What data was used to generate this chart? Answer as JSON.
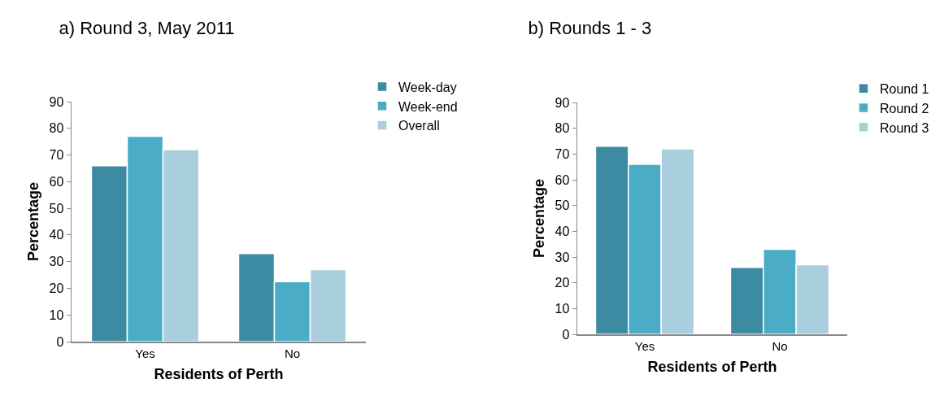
{
  "chart_data": [
    {
      "type": "bar",
      "title": "a) Round 3, May 2011",
      "xlabel": "Residents of Perth",
      "ylabel": "Percentage",
      "categories": [
        "Yes",
        "No"
      ],
      "ylim": [
        0,
        90
      ],
      "yticks": [
        0,
        10,
        20,
        30,
        40,
        50,
        60,
        70,
        80,
        90
      ],
      "grid": false,
      "legend": "top right",
      "series": [
        {
          "name": "Week-day",
          "color": "#3d8ba3",
          "values": [
            66,
            33
          ]
        },
        {
          "name": "Week-end",
          "color": "#4aacc6",
          "values": [
            77,
            22.5
          ]
        },
        {
          "name": "Overall",
          "color": "#a9cedd",
          "values": [
            72,
            27
          ]
        }
      ]
    },
    {
      "type": "bar",
      "title": "b) Rounds 1 - 3",
      "xlabel": "Residents of Perth",
      "ylabel": "Percentage",
      "categories": [
        "Yes",
        "No"
      ],
      "ylim": [
        0,
        90
      ],
      "yticks": [
        0,
        10,
        20,
        30,
        40,
        50,
        60,
        70,
        80,
        90
      ],
      "grid": false,
      "legend": "top right",
      "series": [
        {
          "name": "Round 1",
          "color": "#3d8ba3",
          "values": [
            73,
            26
          ]
        },
        {
          "name": "Round 2",
          "color": "#4aacc6",
          "values": [
            66,
            33
          ]
        },
        {
          "name": "Round 3",
          "color": "#a9cedd",
          "values": [
            72,
            27
          ]
        }
      ]
    }
  ]
}
